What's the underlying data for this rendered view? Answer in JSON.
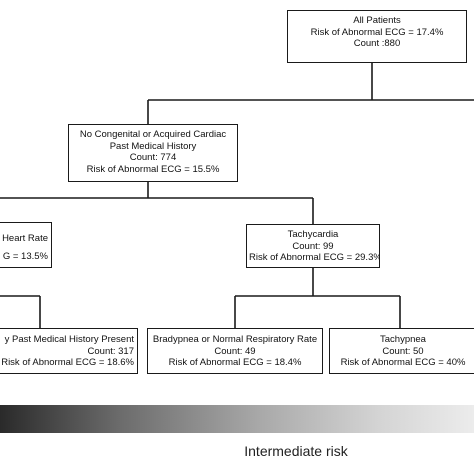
{
  "tree": {
    "root": {
      "lines": [
        "All Patients",
        "Risk of Abnormal ECG = 17.4%",
        "Count :880"
      ]
    },
    "no_cardiac": {
      "lines": [
        "No Congenital or Acquired Cardiac",
        "Past Medical History",
        "Count: 774",
        "Risk of Abnormal ECG = 15.5%"
      ]
    },
    "normal_heart_rate": {
      "lines": [
        "Heart Rate",
        "G = 13.5%"
      ]
    },
    "tachycardia": {
      "lines": [
        "Tachycardia",
        "Count: 99",
        "Risk of Abnormal ECG = 29.3%"
      ]
    },
    "history_present": {
      "lines": [
        "y Past Medical History Present",
        "Count: 317",
        "Risk of Abnormal ECG = 18.6%"
      ]
    },
    "bradypnea": {
      "lines": [
        "Bradypnea or Normal Respiratory Rate",
        "Count: 49",
        "Risk of Abnormal ECG = 18.4%"
      ]
    },
    "tachypnea": {
      "lines": [
        "Tachypnea",
        "Count: 50",
        "Risk of Abnormal ECG = 40%"
      ]
    }
  },
  "legend": {
    "risk_label": "Intermediate risk"
  }
}
